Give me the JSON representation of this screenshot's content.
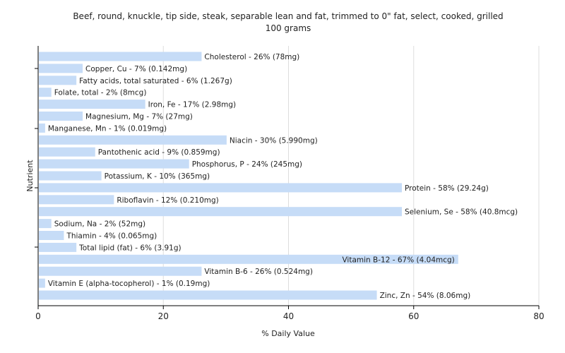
{
  "chart_data": {
    "type": "bar",
    "orientation": "horizontal",
    "title": "Beef, round, knuckle, tip side, steak, separable lean and fat, trimmed to 0\" fat, select, cooked, grilled",
    "subtitle": "100 grams",
    "xlabel": "% Daily Value",
    "ylabel": "Nutrient",
    "xlim": [
      0,
      80
    ],
    "xticks": [
      0,
      20,
      40,
      60,
      80
    ],
    "grid": true,
    "bar_color": "#c6dcf7",
    "grid_color": "#dddddd",
    "categories": [
      "Cholesterol",
      "Copper, Cu",
      "Fatty acids, total saturated",
      "Folate, total",
      "Iron, Fe",
      "Magnesium, Mg",
      "Manganese, Mn",
      "Niacin",
      "Pantothenic acid",
      "Phosphorus, P",
      "Potassium, K",
      "Protein",
      "Riboflavin",
      "Selenium, Se",
      "Sodium, Na",
      "Thiamin",
      "Total lipid (fat)",
      "Vitamin B-12",
      "Vitamin B-6",
      "Vitamin E (alpha-tocopherol)",
      "Zinc, Zn"
    ],
    "values": [
      26,
      7,
      6,
      2,
      17,
      7,
      1,
      30,
      9,
      24,
      10,
      58,
      12,
      58,
      2,
      4,
      6,
      67,
      26,
      1,
      54
    ],
    "data_labels": [
      "Cholesterol - 26% (78mg)",
      "Copper, Cu - 7% (0.142mg)",
      "Fatty acids, total saturated - 6% (1.267g)",
      "Folate, total - 2% (8mcg)",
      "Iron, Fe - 17% (2.98mg)",
      "Magnesium, Mg - 7% (27mg)",
      "Manganese, Mn - 1% (0.019mg)",
      "Niacin - 30% (5.990mg)",
      "Pantothenic acid - 9% (0.859mg)",
      "Phosphorus, P - 24% (245mg)",
      "Potassium, K - 10% (365mg)",
      "Protein - 58% (29.24g)",
      "Riboflavin - 12% (0.210mg)",
      "Selenium, Se - 58% (40.8mcg)",
      "Sodium, Na - 2% (52mg)",
      "Thiamin - 4% (0.065mg)",
      "Total lipid (fat) - 6% (3.91g)",
      "Vitamin B-12 - 67% (4.04mcg)",
      "Vitamin B-6 - 26% (0.524mg)",
      "Vitamin E (alpha-tocopherol) - 1% (0.19mg)",
      "Zinc, Zn - 54% (8.06mg)"
    ],
    "label_inside_bar": [
      false,
      false,
      false,
      false,
      false,
      false,
      false,
      false,
      false,
      false,
      false,
      false,
      false,
      false,
      false,
      false,
      false,
      true,
      false,
      false,
      false
    ]
  }
}
